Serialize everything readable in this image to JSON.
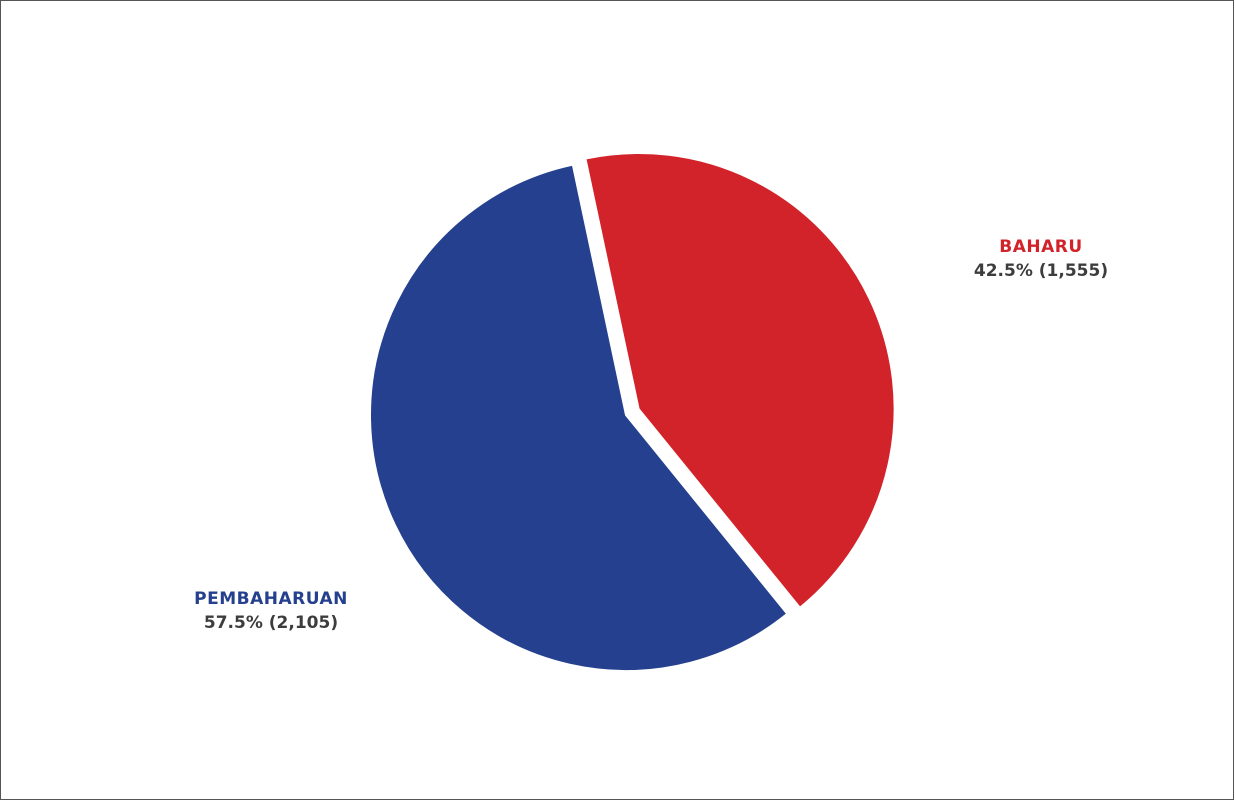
{
  "chart_data": {
    "type": "pie",
    "title": "",
    "slices": [
      {
        "name": "BAHARU",
        "value": 1555,
        "percent": 42.5,
        "value_label": "42.5% (1,555)",
        "color": "#d2232a"
      },
      {
        "name": "PEMBAHARUAN",
        "value": 2105,
        "percent": 57.5,
        "value_label": "57.5% (2,105)",
        "color": "#24408e"
      }
    ],
    "exploded_slice": "BAHARU",
    "label_color": "#3d3d3d"
  }
}
